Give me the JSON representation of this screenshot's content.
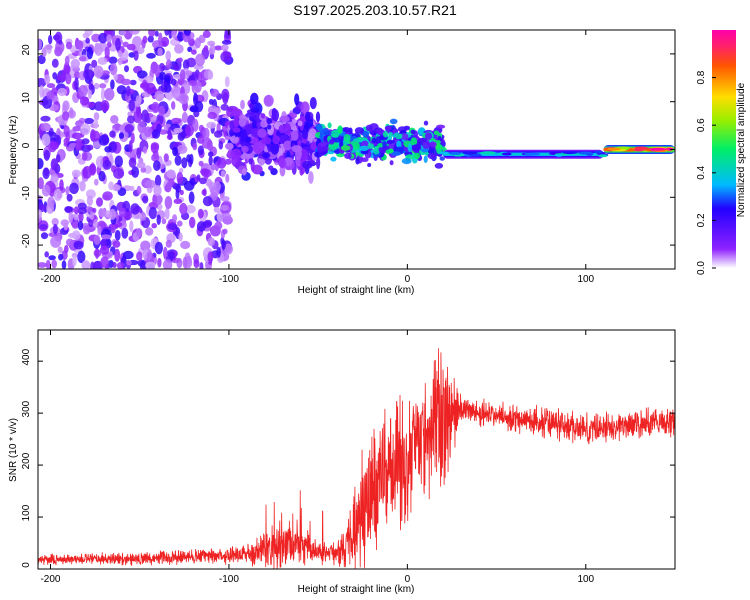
{
  "title": "S197.2025.203.10.57.R21",
  "colors": {
    "spectrum_base": "#7a1fff",
    "snr_line": "#ee2222",
    "colormap": [
      "#ffffff",
      "#8e22ff",
      "#2200ff",
      "#00bbff",
      "#00ee66",
      "#99ee00",
      "#ffdd00",
      "#ff5500",
      "#ff2266",
      "#ff00aa"
    ]
  },
  "chart_data": [
    {
      "type": "heatmap",
      "title": "S197.2025.203.10.57.R21",
      "xlabel": "Height of straight line (km)",
      "ylabel": "Frequency (Hz)",
      "xlim": [
        -207,
        150
      ],
      "ylim": [
        -25,
        25
      ],
      "xticks": [
        -200,
        -100,
        0,
        100
      ],
      "yticks": [
        -20,
        -10,
        0,
        10,
        20
      ],
      "colorbar": {
        "label": "Normalized spectral amplitude",
        "range": [
          0,
          1
        ],
        "ticks": [
          "0.0",
          "0.2",
          "0.4",
          "0.6",
          "0.8"
        ]
      },
      "regions": [
        {
          "x": [
            -207,
            -100
          ],
          "frequency_spread": [
            -25,
            25
          ],
          "amplitude": 0.1,
          "description_value": "scattered"
        },
        {
          "x": [
            -100,
            -50
          ],
          "frequency_spread": [
            -8,
            12
          ],
          "amplitude": 0.12
        },
        {
          "x": [
            -50,
            20
          ],
          "frequency_spread": [
            -4,
            7
          ],
          "amplitude": 0.3
        },
        {
          "x": [
            20,
            110
          ],
          "frequency": -1,
          "amplitude": 0.4
        },
        {
          "x": [
            110,
            150
          ],
          "frequency": 0,
          "amplitude": 0.95
        }
      ]
    },
    {
      "type": "line",
      "xlabel": "Height of straight line (km)",
      "ylabel": "SNR (10 * v/v)",
      "xlim": [
        -207,
        150
      ],
      "ylim": [
        0,
        460
      ],
      "xticks": [
        -200,
        -100,
        0,
        100
      ],
      "yticks": [
        0,
        100,
        200,
        300,
        400
      ],
      "envelope": {
        "x": [
          -207,
          -150,
          -110,
          -90,
          -80,
          -70,
          -60,
          -50,
          -40,
          -35,
          -30,
          -25,
          -20,
          -15,
          -10,
          -5,
          0,
          5,
          10,
          15,
          20,
          25,
          30,
          35,
          40,
          60,
          80,
          100,
          120,
          150
        ],
        "mean": [
          18,
          20,
          25,
          30,
          35,
          50,
          45,
          35,
          30,
          40,
          80,
          120,
          160,
          190,
          200,
          210,
          220,
          240,
          250,
          270,
          290,
          300,
          310,
          305,
          300,
          290,
          280,
          270,
          275,
          285
        ],
        "noise": [
          10,
          12,
          15,
          20,
          40,
          45,
          35,
          25,
          20,
          40,
          80,
          110,
          130,
          130,
          120,
          120,
          120,
          120,
          130,
          140,
          140,
          80,
          30,
          25,
          25,
          25,
          30,
          30,
          30,
          30
        ]
      }
    }
  ]
}
